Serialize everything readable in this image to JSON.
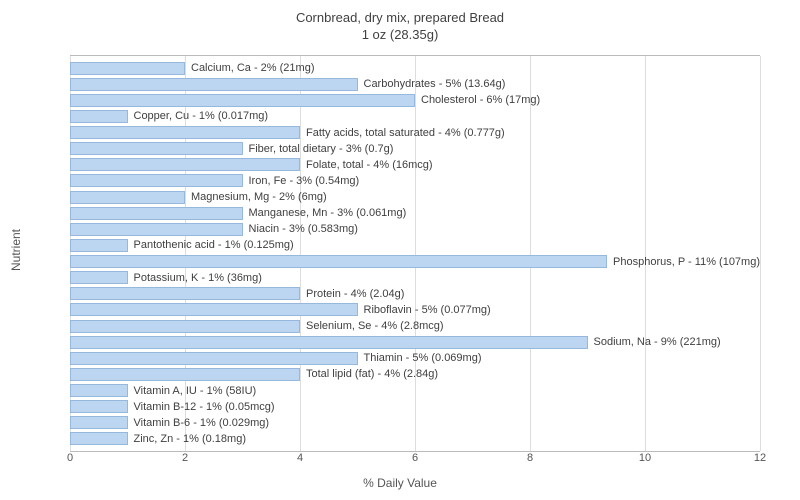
{
  "chart": {
    "type": "horizontal-bar",
    "title_line1": "Cornbread, dry mix, prepared Bread",
    "title_line2": "1 oz (28.35g)",
    "title_fontsize": 13,
    "title_color": "#404040",
    "y_axis_label": "Nutrient",
    "x_axis_label": "% Daily Value",
    "axis_label_fontsize": 12,
    "axis_label_color": "#555555",
    "xlim": [
      0,
      12
    ],
    "xtick_step": 2,
    "xticks": [
      0,
      2,
      4,
      6,
      8,
      10,
      12
    ],
    "tick_fontsize": 11,
    "tick_color": "#555555",
    "plot_border_color": "#bbbbbb",
    "grid_color": "#dddddd",
    "background_color": "#ffffff",
    "bar_fill_color": "#bcd5f0",
    "bar_border_color": "#96b8dc",
    "bar_label_fontsize": 11,
    "bar_label_color": "#404040",
    "rows": [
      {
        "label": "Calcium, Ca - 2% (21mg)",
        "value": 2
      },
      {
        "label": "Carbohydrates - 5% (13.64g)",
        "value": 5
      },
      {
        "label": "Cholesterol - 6% (17mg)",
        "value": 6
      },
      {
        "label": "Copper, Cu - 1% (0.017mg)",
        "value": 1
      },
      {
        "label": "Fatty acids, total saturated - 4% (0.777g)",
        "value": 4
      },
      {
        "label": "Fiber, total dietary - 3% (0.7g)",
        "value": 3
      },
      {
        "label": "Folate, total - 4% (16mcg)",
        "value": 4
      },
      {
        "label": "Iron, Fe - 3% (0.54mg)",
        "value": 3
      },
      {
        "label": "Magnesium, Mg - 2% (6mg)",
        "value": 2
      },
      {
        "label": "Manganese, Mn - 3% (0.061mg)",
        "value": 3
      },
      {
        "label": "Niacin - 3% (0.583mg)",
        "value": 3
      },
      {
        "label": "Pantothenic acid - 1% (0.125mg)",
        "value": 1
      },
      {
        "label": "Phosphorus, P - 11% (107mg)",
        "value": 11
      },
      {
        "label": "Potassium, K - 1% (36mg)",
        "value": 1
      },
      {
        "label": "Protein - 4% (2.04g)",
        "value": 4
      },
      {
        "label": "Riboflavin - 5% (0.077mg)",
        "value": 5
      },
      {
        "label": "Selenium, Se - 4% (2.8mcg)",
        "value": 4
      },
      {
        "label": "Sodium, Na - 9% (221mg)",
        "value": 9
      },
      {
        "label": "Thiamin - 5% (0.069mg)",
        "value": 5
      },
      {
        "label": "Total lipid (fat) - 4% (2.84g)",
        "value": 4
      },
      {
        "label": "Vitamin A, IU - 1% (58IU)",
        "value": 1
      },
      {
        "label": "Vitamin B-12 - 1% (0.05mcg)",
        "value": 1
      },
      {
        "label": "Vitamin B-6 - 1% (0.029mg)",
        "value": 1
      },
      {
        "label": "Zinc, Zn - 1% (0.18mg)",
        "value": 1
      }
    ]
  }
}
